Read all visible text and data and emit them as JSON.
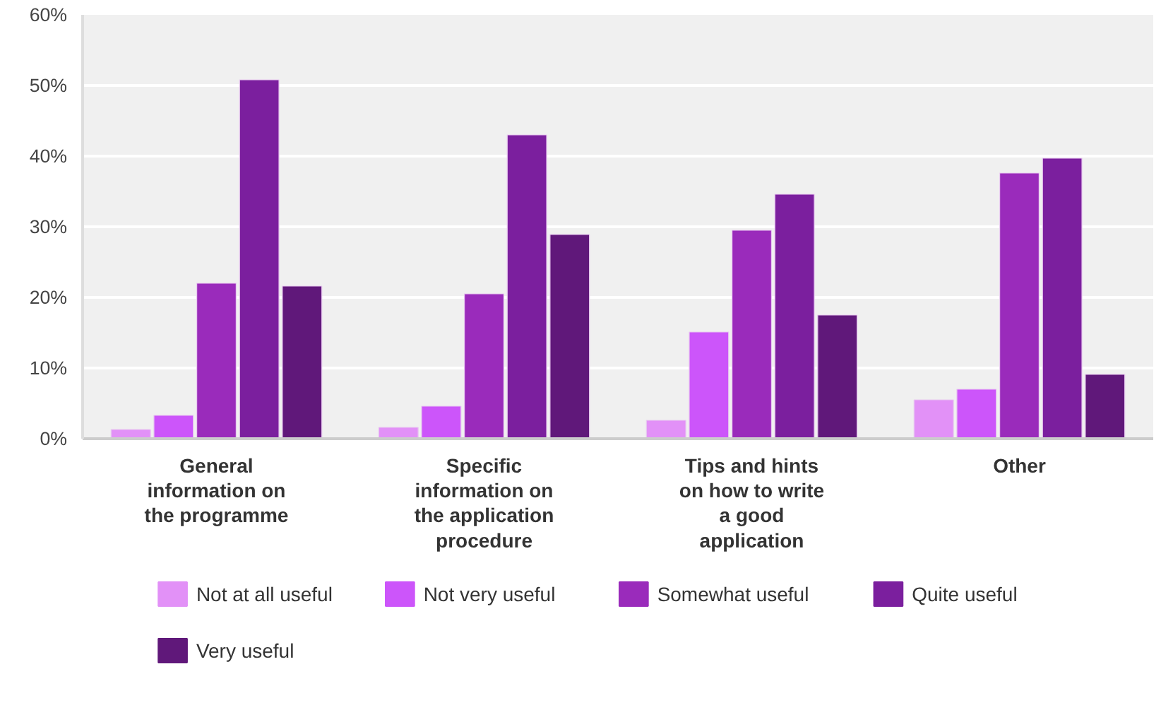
{
  "chart_data": {
    "type": "bar",
    "categories": [
      "General\ninformation on\nthe programme",
      "Specific\ninformation on\nthe application\nprocedure",
      "Tips and hints\non how to write\na good\napplication",
      "Other"
    ],
    "series": [
      {
        "name": "Not at all useful",
        "color": "#e291f7",
        "values": [
          1.3,
          1.6,
          2.6,
          5.5
        ]
      },
      {
        "name": "Not very useful",
        "color": "#cc55fa",
        "values": [
          3.3,
          4.6,
          15.1,
          7.0
        ]
      },
      {
        "name": "Somewhat useful",
        "color": "#9a2bbb",
        "values": [
          22.0,
          20.5,
          29.5,
          37.6
        ]
      },
      {
        "name": "Quite useful",
        "color": "#7b1f9e",
        "values": [
          50.8,
          43.0,
          34.6,
          39.7
        ]
      },
      {
        "name": "Very useful",
        "color": "#60187a",
        "values": [
          21.6,
          28.9,
          17.5,
          9.1
        ]
      }
    ],
    "ylim": [
      0,
      60
    ],
    "yticks": [
      {
        "value": 0,
        "label": "0%"
      },
      {
        "value": 10,
        "label": "10%"
      },
      {
        "value": 20,
        "label": "20%"
      },
      {
        "value": 30,
        "label": "30%"
      },
      {
        "value": 40,
        "label": "40%"
      },
      {
        "value": 50,
        "label": "50%"
      },
      {
        "value": 60,
        "label": "60%"
      }
    ],
    "grid": "y",
    "legend": "bottom"
  }
}
